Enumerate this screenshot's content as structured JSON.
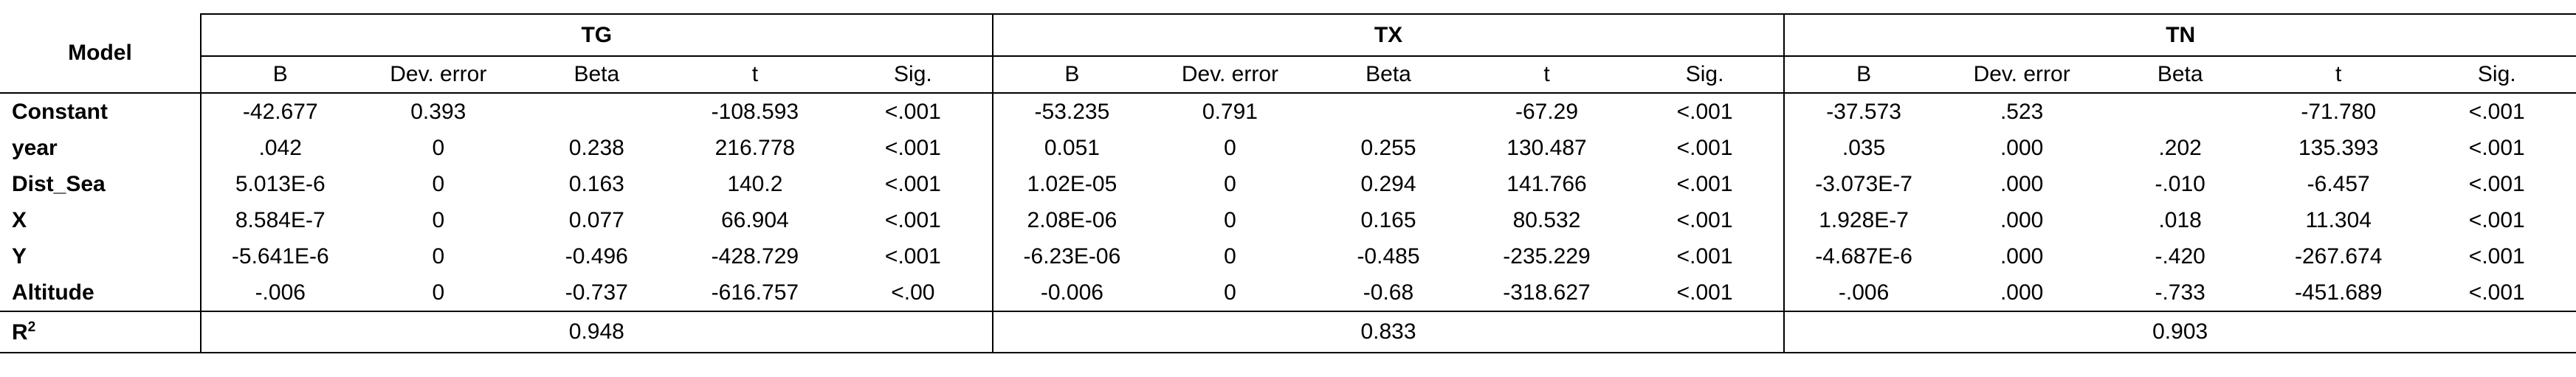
{
  "table": {
    "corner": "Model",
    "groups": [
      "TG",
      "TX",
      "TN"
    ],
    "columns": [
      "B",
      "Dev. error",
      "Beta",
      "t",
      "Sig."
    ],
    "rows": [
      {
        "label": "Constant",
        "cells": [
          "-42.677",
          "0.393",
          null,
          "-108.593",
          "<.001",
          "-53.235",
          "0.791",
          null,
          "-67.29",
          "<.001",
          "-37.573",
          ".523",
          null,
          "-71.780",
          "<.001"
        ]
      },
      {
        "label": "year",
        "cells": [
          ".042",
          "0",
          "0.238",
          "216.778",
          "<.001",
          "0.051",
          "0",
          "0.255",
          "130.487",
          "<.001",
          ".035",
          ".000",
          ".202",
          "135.393",
          "<.001"
        ]
      },
      {
        "label": "Dist_Sea",
        "cells": [
          "5.013E-6",
          "0",
          "0.163",
          "140.2",
          "<.001",
          "1.02E-05",
          "0",
          "0.294",
          "141.766",
          "<.001",
          "-3.073E-7",
          ".000",
          "-.010",
          "-6.457",
          "<.001"
        ]
      },
      {
        "label": "X",
        "cells": [
          "8.584E-7",
          "0",
          "0.077",
          "66.904",
          "<.001",
          "2.08E-06",
          "0",
          "0.165",
          "80.532",
          "<.001",
          "1.928E-7",
          ".000",
          ".018",
          "11.304",
          "<.001"
        ]
      },
      {
        "label": "Y",
        "cells": [
          "-5.641E-6",
          "0",
          "-0.496",
          "-428.729",
          "<.001",
          "-6.23E-06",
          "0",
          "-0.485",
          "-235.229",
          "<.001",
          "-4.687E-6",
          ".000",
          "-.420",
          "-267.674",
          "<.001"
        ]
      },
      {
        "label": "Altitude",
        "cells": [
          "-.006",
          "0",
          "-0.737",
          "-616.757",
          "<.00",
          "-0.006",
          "0",
          "-0.68",
          "-318.627",
          "<.001",
          "-.006",
          ".000",
          "-.733",
          "-451.689",
          "<.001"
        ]
      }
    ],
    "r2": {
      "label": "R",
      "sup": "2",
      "values": [
        "0.948",
        "0.833",
        "0.903"
      ]
    }
  }
}
